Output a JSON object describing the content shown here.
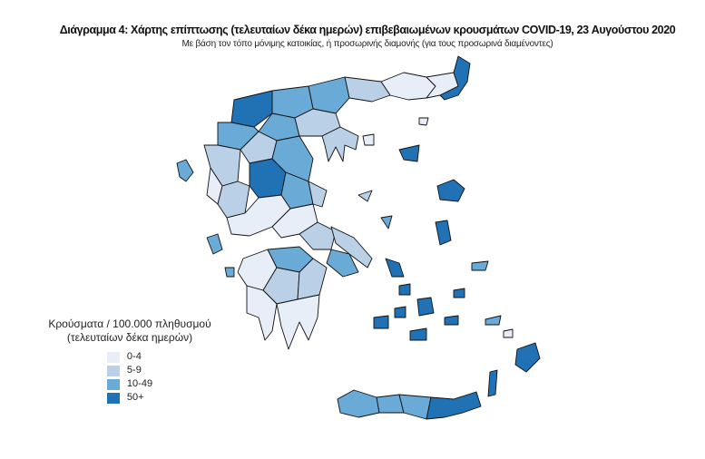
{
  "title": "Διάγραμμα 4: Χάρτης επίπτωσης (τελευταίων δέκα ημερών) επιβεβαιωμένων κρουσμάτων COVID-19, 23 Αυγούστου 2020",
  "subtitle": "Με βάση τον τόπο μόνιμης κατοικίας, ή προσωρινής διαμονής (για τους προσωρινά διαμένοντες)",
  "legend": {
    "title_line1": "Κρούσματα / 100.000 πληθυσμού",
    "title_line2": "(τελευταίων δέκα ημερών)",
    "items": [
      {
        "label": "0-4",
        "color": "#e8eef8"
      },
      {
        "label": "5-9",
        "color": "#bad0e6"
      },
      {
        "label": "10-49",
        "color": "#6aaad6"
      },
      {
        "label": "50+",
        "color": "#2171b5"
      }
    ]
  }
}
